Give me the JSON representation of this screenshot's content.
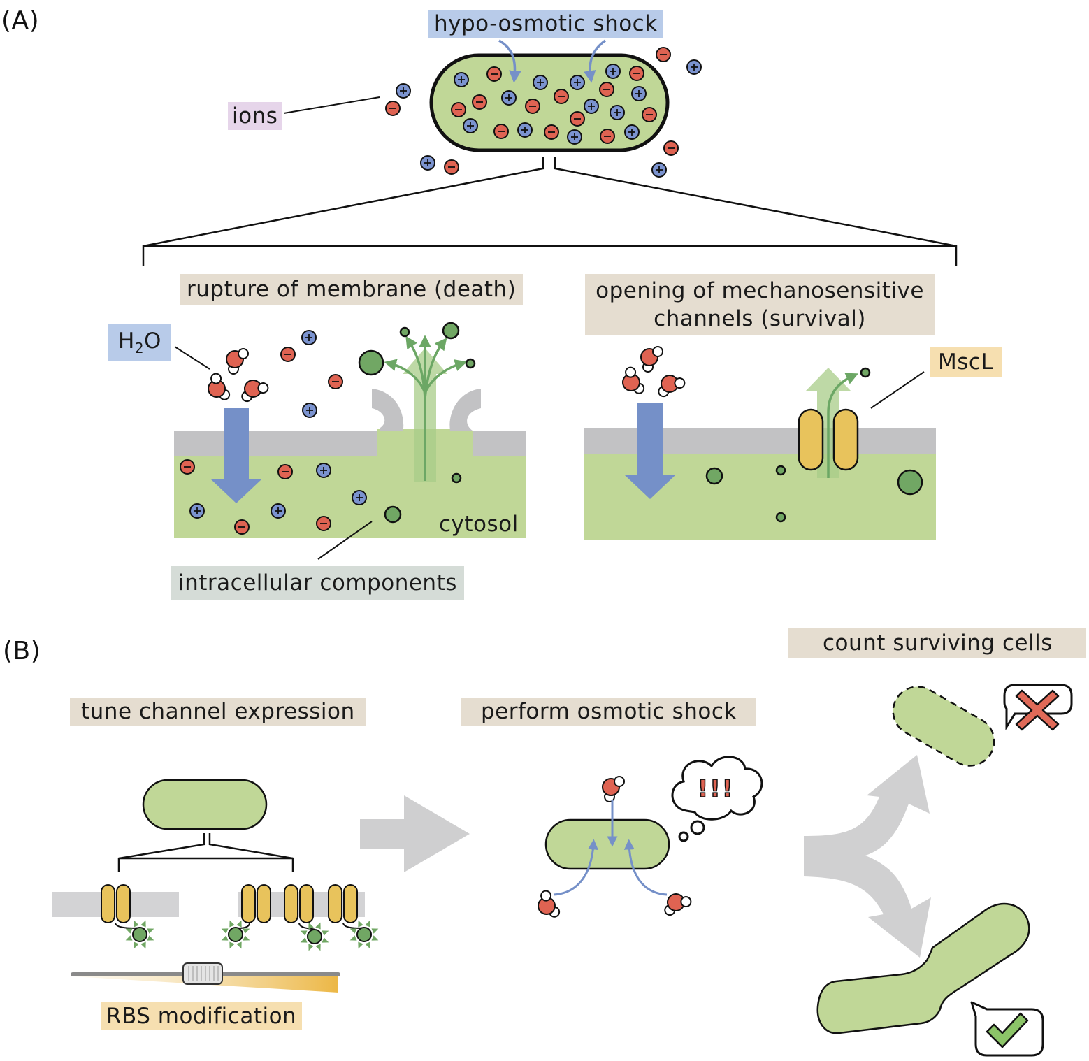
{
  "panels": {
    "a": "(A)",
    "b": "(B)"
  },
  "labels": {
    "hypo_shock": "hypo-osmotic shock",
    "ions": "ions",
    "rupture": "rupture of membrane (death)",
    "opening_line1": "opening of mechanosensitive",
    "opening_line2": "channels (survival)",
    "water_h": "H",
    "water_sub": "2",
    "water_o": "O",
    "mscl": "MscL",
    "cytosol": "cytosol",
    "intracellular": "intracellular components",
    "tune": "tune channel expression",
    "perform": "perform osmotic shock",
    "count": "count surviving cells",
    "rbs": "RBS modification",
    "exclaim": "!!!"
  },
  "colors": {
    "cell_fill": "#c0d797",
    "membrane_grey": "#c2c2c4",
    "cation_blue": "#7b93cf",
    "anion_red": "#df6352",
    "water_arrow_blue": "#7590c8",
    "release_green": "#7eae6c",
    "component_green": "#71a764",
    "channel_gold": "#e8c35c",
    "failure_red": "#e06a58",
    "success_green": "#8cc468",
    "flow_grey": "#cfcfd0"
  },
  "icons": [
    "cation-icon",
    "anion-icon",
    "water-molecule-icon",
    "mscl-channel-icon",
    "gfp-reporter-icon",
    "thought-bubble-icon",
    "cross-icon",
    "check-icon",
    "flow-arrow-icon"
  ]
}
